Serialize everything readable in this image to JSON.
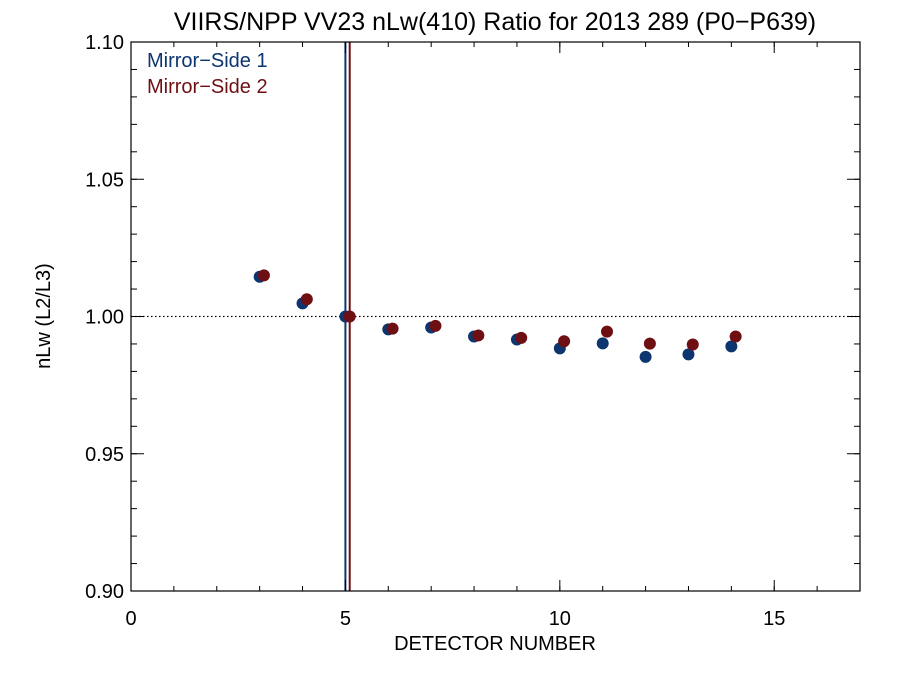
{
  "chart_data": {
    "type": "scatter",
    "title": "VIIRS/NPP VV23 nLw(410) Ratio for 2013 289 (P0−P639)",
    "xlabel": "DETECTOR NUMBER",
    "ylabel": "nLw (L2/L3)",
    "xlim": [
      0,
      17
    ],
    "ylim": [
      0.9,
      1.1
    ],
    "x_ticks": [
      0,
      5,
      10,
      15
    ],
    "x_tick_labels": [
      "0",
      "5",
      "10",
      "15"
    ],
    "x_minor_step": 1,
    "y_ticks": [
      0.9,
      0.95,
      1.0,
      1.05,
      1.1
    ],
    "y_tick_labels": [
      "0.90",
      "0.95",
      "1.00",
      "1.05",
      "1.10"
    ],
    "y_minor_step": 0.01,
    "grid": false,
    "legend_position": "top-left",
    "reference_line": {
      "y": 1.0,
      "style": "dotted",
      "color": "#000000"
    },
    "series": [
      {
        "name": "Mirror−Side 1",
        "color": "#0d3570",
        "x": [
          3,
          4,
          5,
          6,
          7,
          8,
          9,
          10,
          11,
          12,
          13,
          14
        ],
        "y": [
          1.0145,
          1.0048,
          1.0,
          0.9953,
          0.996,
          0.9927,
          0.9916,
          0.9884,
          0.9902,
          0.9853,
          0.9862,
          0.9891
        ],
        "reference_x": 5
      },
      {
        "name": "Mirror−Side 2",
        "color": "#6e0f14",
        "x": [
          3.1,
          4.1,
          5.1,
          6.1,
          7.1,
          8.1,
          9.1,
          10.1,
          11.1,
          12.1,
          13.1,
          14.1
        ],
        "y": [
          1.015,
          1.0063,
          1.0,
          0.9956,
          0.9966,
          0.9931,
          0.9922,
          0.991,
          0.9945,
          0.9901,
          0.9898,
          0.9927
        ],
        "reference_x": 5.1
      }
    ]
  }
}
